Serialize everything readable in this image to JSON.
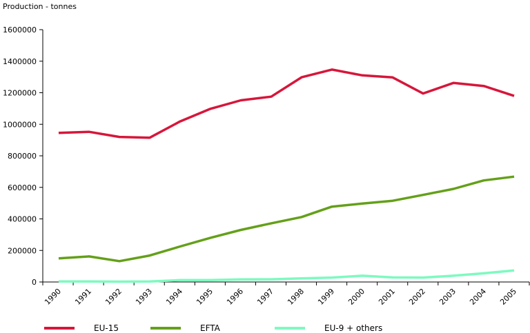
{
  "chart_data": {
    "type": "line",
    "title": "",
    "ylabel": "Production - tonnes",
    "xlabel": "",
    "x": [
      "1990",
      "1991",
      "1992",
      "1993",
      "1994",
      "1995",
      "1996",
      "1997",
      "1998",
      "1999",
      "2000",
      "2001",
      "2002",
      "2003",
      "2004",
      "2005"
    ],
    "ylim": [
      0,
      1600000
    ],
    "yticks": [
      0,
      200000,
      400000,
      600000,
      800000,
      1000000,
      1200000,
      1400000,
      1600000
    ],
    "grid": false,
    "legend_position": "bottom",
    "series": [
      {
        "name": "EU-15",
        "color": "#d7163a",
        "values": [
          945000,
          952000,
          920000,
          915000,
          1018000,
          1098000,
          1152000,
          1175000,
          1298000,
          1347000,
          1310000,
          1297000,
          1195000,
          1262000,
          1243000,
          1180000
        ]
      },
      {
        "name": "EFTA",
        "color": "#64a019",
        "values": [
          150000,
          162000,
          132000,
          168000,
          225000,
          280000,
          330000,
          372000,
          412000,
          478000,
          497000,
          515000,
          552000,
          590000,
          644000,
          668000
        ]
      },
      {
        "name": "EU-9 + others",
        "color": "#7dfac0",
        "values": [
          3000,
          3000,
          2000,
          3000,
          12000,
          12000,
          16000,
          17000,
          23000,
          28000,
          40000,
          29000,
          28000,
          40000,
          55000,
          73000
        ]
      }
    ]
  }
}
